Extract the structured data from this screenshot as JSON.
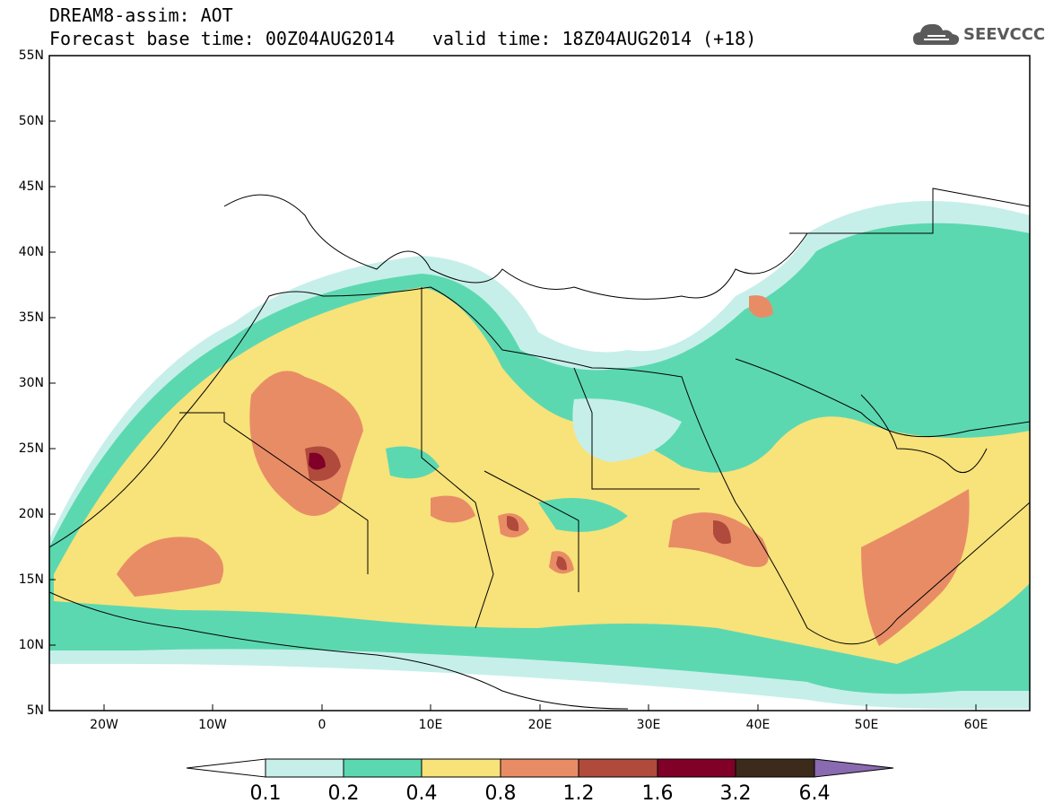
{
  "header": {
    "title_line1": "DREAM8-assim: AOT",
    "title_line2": "Forecast base time: 00Z04AUG2014",
    "valid_time": "valid time: 18Z04AUG2014 (+18)"
  },
  "logo": {
    "text": "SEEVCCC",
    "icon": "cloud-icon"
  },
  "map": {
    "lat_labels": [
      "55N",
      "50N",
      "45N",
      "40N",
      "35N",
      "30N",
      "25N",
      "20N",
      "15N",
      "10N",
      "5N"
    ],
    "lon_labels": [
      "20W",
      "10W",
      "0",
      "10E",
      "20E",
      "30E",
      "40E",
      "50E",
      "60E"
    ],
    "lat_range": [
      5,
      55
    ],
    "lon_range": [
      -25,
      65
    ]
  },
  "colorbar": {
    "colors": [
      "#ffffff",
      "#c6efea",
      "#5cd8b0",
      "#f8e27a",
      "#e88c66",
      "#b04a3c",
      "#800028",
      "#3c2a1a",
      "#8a6ab0"
    ],
    "labels": [
      "0.1",
      "0.2",
      "0.4",
      "0.8",
      "1.2",
      "1.6",
      "3.2",
      "6.4"
    ]
  }
}
